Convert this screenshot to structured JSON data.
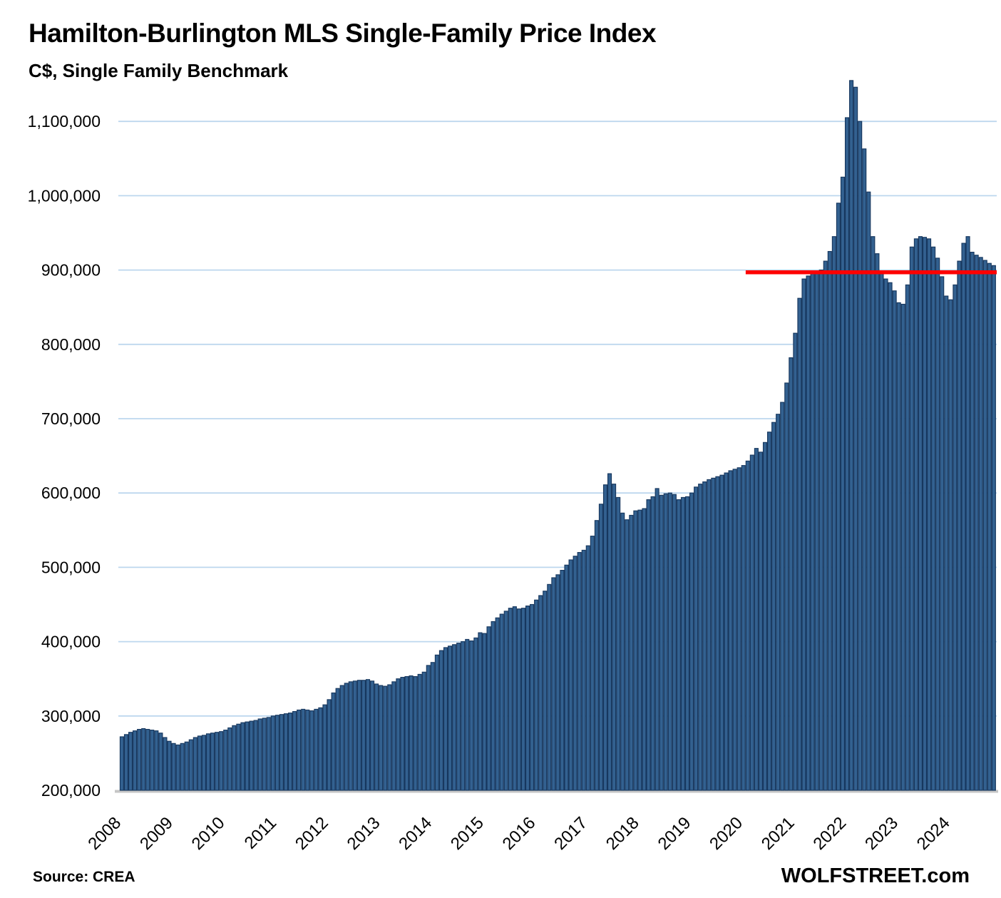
{
  "footer": {
    "source": "Source: CREA",
    "brand": "WOLFSTREET.com"
  },
  "chart_data": {
    "type": "bar",
    "title": "Hamilton-Burlington MLS Single-Family Price Index",
    "subtitle": "C$, Single Family Benchmark",
    "unit": "C$",
    "frequency": "monthly",
    "months_start": "2008-01",
    "months_end": "2024-11",
    "x_tick_labels": [
      "2008",
      "2009",
      "2010",
      "2011",
      "2012",
      "2013",
      "2014",
      "2015",
      "2016",
      "2017",
      "2018",
      "2019",
      "2020",
      "2021",
      "2022",
      "2023",
      "2024"
    ],
    "y_axis": {
      "min": 200000,
      "max": 1160000,
      "tick_interval": 100000,
      "tick_values": [
        200000,
        300000,
        400000,
        500000,
        600000,
        700000,
        800000,
        900000,
        1000000,
        1100000
      ],
      "tick_labels": [
        "200,000",
        "300,000",
        "400,000",
        "500,000",
        "600,000",
        "700,000",
        "800,000",
        "900,000",
        "1,000,000",
        "1,100,000"
      ]
    },
    "values": [
      272000,
      275000,
      278000,
      280000,
      282000,
      283000,
      282000,
      281000,
      280000,
      277000,
      271000,
      266000,
      263000,
      261000,
      263000,
      265000,
      268000,
      271000,
      273000,
      274000,
      276000,
      277000,
      278000,
      279000,
      281000,
      284000,
      287000,
      289000,
      291000,
      292000,
      293000,
      294000,
      296000,
      297000,
      298000,
      300000,
      301000,
      302000,
      303000,
      304000,
      306000,
      308000,
      309000,
      308000,
      307000,
      309000,
      311000,
      315000,
      322000,
      331000,
      337000,
      341000,
      344000,
      346000,
      347000,
      348000,
      348000,
      349000,
      347000,
      343000,
      341000,
      340000,
      342000,
      346000,
      350000,
      352000,
      353000,
      354000,
      353000,
      356000,
      359000,
      368000,
      372000,
      382000,
      388000,
      392000,
      394000,
      396000,
      398000,
      400000,
      403000,
      401000,
      405000,
      412000,
      411000,
      420000,
      427000,
      432000,
      437000,
      441000,
      445000,
      447000,
      444000,
      445000,
      448000,
      450000,
      456000,
      462000,
      468000,
      477000,
      486000,
      490000,
      496000,
      503000,
      510000,
      515000,
      520000,
      523000,
      529000,
      542000,
      563000,
      585000,
      611000,
      626000,
      612000,
      594000,
      573000,
      564000,
      570000,
      576000,
      577000,
      579000,
      591000,
      595000,
      606000,
      597000,
      599000,
      600000,
      598000,
      591000,
      594000,
      595000,
      600000,
      608000,
      612000,
      615000,
      618000,
      620000,
      622000,
      624000,
      627000,
      630000,
      632000,
      634000,
      637000,
      643000,
      651000,
      660000,
      655000,
      668000,
      682000,
      695000,
      706000,
      722000,
      748000,
      782000,
      815000,
      862000,
      888000,
      892000,
      895000,
      897000,
      900000,
      912000,
      925000,
      945000,
      990000,
      1025000,
      1105000,
      1155000,
      1146000,
      1100000,
      1063000,
      1005000,
      945000,
      922000,
      895000,
      888000,
      883000,
      872000,
      856000,
      854000,
      880000,
      931000,
      942000,
      945000,
      944000,
      942000,
      931000,
      916000,
      891000,
      865000,
      860000,
      880000,
      912000,
      936000,
      945000,
      924000,
      920000,
      917000,
      913000,
      909000,
      906000
    ],
    "red_line": {
      "value": 897000,
      "starts_at": "2020-02",
      "color": "#FF0000"
    },
    "colors": {
      "bar_fill": "#336190",
      "bar_border": "#17375E",
      "gridline": "#BDD7EE",
      "axis_line": "#C6C6C6"
    },
    "grid": true,
    "legend": false
  }
}
